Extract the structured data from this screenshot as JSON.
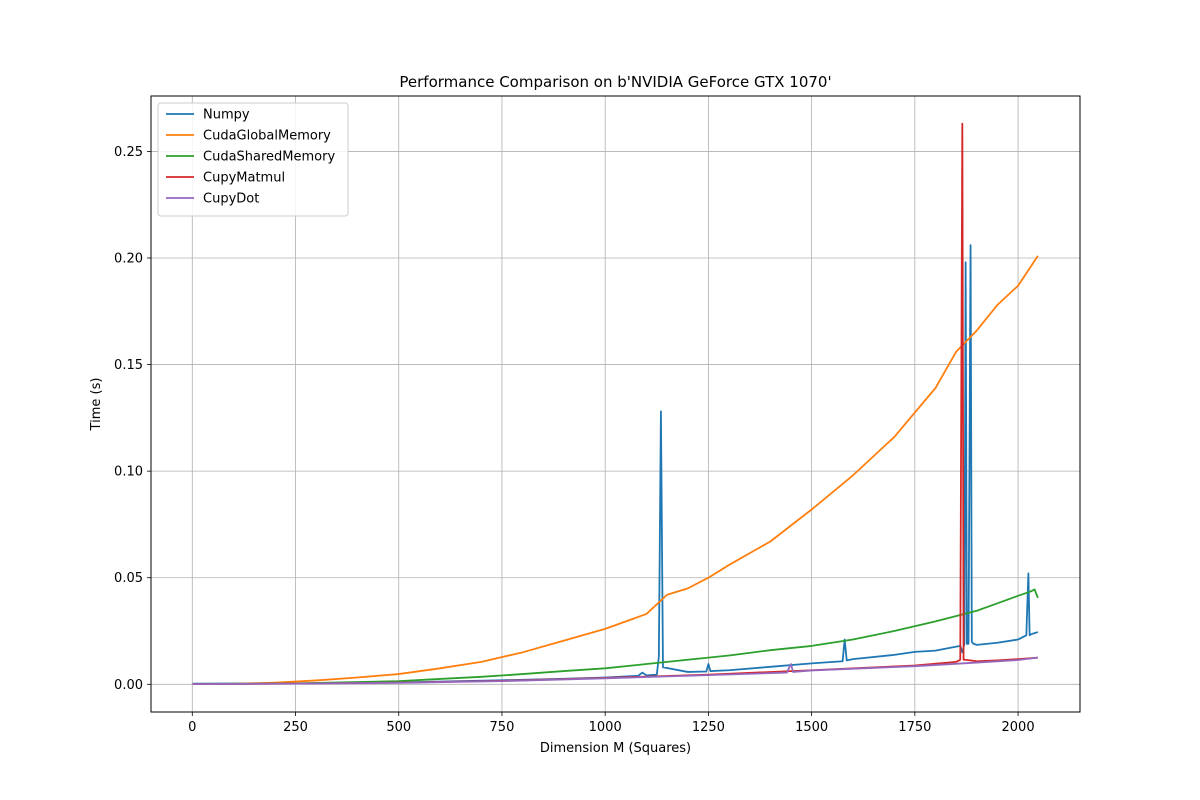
{
  "chart_data": {
    "type": "line",
    "title": "Performance Comparison on b'NVIDIA GeForce GTX 1070'",
    "xlabel": "Dimension M (Squares)",
    "ylabel": "Time (s)",
    "xlim": [
      -100,
      2150
    ],
    "ylim": [
      -0.013,
      0.276
    ],
    "xticks": [
      0,
      250,
      500,
      750,
      1000,
      1250,
      1500,
      1750,
      2000
    ],
    "xtick_labels": [
      "0",
      "250",
      "500",
      "750",
      "1000",
      "1250",
      "1500",
      "1750",
      "2000"
    ],
    "yticks": [
      0.0,
      0.05,
      0.1,
      0.15,
      0.2,
      0.25
    ],
    "ytick_labels": [
      "0.00",
      "0.05",
      "0.10",
      "0.15",
      "0.20",
      "0.25"
    ],
    "grid": true,
    "legend_position": "top-left",
    "series": [
      {
        "name": "Numpy",
        "color": "#1f77b4",
        "x": [
          1,
          250,
          500,
          750,
          900,
          1000,
          1080,
          1090,
          1100,
          1125,
          1130,
          1135,
          1140,
          1200,
          1245,
          1250,
          1255,
          1300,
          1400,
          1500,
          1575,
          1580,
          1585,
          1600,
          1700,
          1750,
          1800,
          1860,
          1865,
          1870,
          1873,
          1876,
          1880,
          1885,
          1888,
          1892,
          1900,
          1950,
          2000,
          2020,
          2025,
          2028,
          2032,
          2040,
          2048
        ],
        "y": [
          0.0003,
          0.0004,
          0.0009,
          0.0019,
          0.0026,
          0.0032,
          0.004,
          0.0055,
          0.0042,
          0.0045,
          0.013,
          0.128,
          0.008,
          0.0058,
          0.006,
          0.0095,
          0.0062,
          0.0066,
          0.0082,
          0.0098,
          0.0108,
          0.021,
          0.0112,
          0.0118,
          0.0138,
          0.0152,
          0.0158,
          0.018,
          0.015,
          0.019,
          0.198,
          0.019,
          0.019,
          0.206,
          0.02,
          0.019,
          0.0185,
          0.0195,
          0.021,
          0.023,
          0.052,
          0.023,
          0.0235,
          0.024,
          0.0245
        ]
      },
      {
        "name": "CudaGlobalMemory",
        "color": "#ff7f0e",
        "x": [
          1,
          100,
          200,
          300,
          400,
          500,
          600,
          700,
          800,
          900,
          1000,
          1100,
          1150,
          1200,
          1250,
          1300,
          1400,
          1500,
          1600,
          1700,
          1800,
          1850,
          1900,
          1950,
          2000,
          2048
        ],
        "y": [
          0.0001,
          0.0002,
          0.0008,
          0.0018,
          0.0032,
          0.0048,
          0.0075,
          0.0105,
          0.015,
          0.0205,
          0.026,
          0.033,
          0.042,
          0.045,
          0.05,
          0.056,
          0.067,
          0.082,
          0.098,
          0.116,
          0.139,
          0.156,
          0.166,
          0.178,
          0.187,
          0.201
        ]
      },
      {
        "name": "CudaSharedMemory",
        "color": "#2ca02c",
        "x": [
          1,
          250,
          500,
          600,
          700,
          800,
          900,
          1000,
          1100,
          1200,
          1300,
          1400,
          1500,
          1600,
          1700,
          1800,
          1900,
          1950,
          2000,
          2030,
          2040,
          2048
        ],
        "y": [
          0.0002,
          0.0004,
          0.0015,
          0.0025,
          0.0035,
          0.0048,
          0.0062,
          0.0075,
          0.0095,
          0.0115,
          0.0135,
          0.016,
          0.018,
          0.021,
          0.025,
          0.0295,
          0.0345,
          0.038,
          0.0415,
          0.0435,
          0.0445,
          0.0405
        ]
      },
      {
        "name": "CupyMatmul",
        "color": "#d62728",
        "x": [
          1,
          250,
          500,
          750,
          1000,
          1250,
          1500,
          1750,
          1850,
          1860,
          1865,
          1868,
          1872,
          1900,
          1950,
          2000,
          2048
        ],
        "y": [
          0.0001,
          0.0003,
          0.0008,
          0.0016,
          0.003,
          0.0045,
          0.0066,
          0.0088,
          0.0105,
          0.0115,
          0.263,
          0.0115,
          0.0115,
          0.0108,
          0.0112,
          0.0118,
          0.0125
        ]
      },
      {
        "name": "CupyDot",
        "color": "#9467bd",
        "x": [
          1,
          250,
          500,
          750,
          1000,
          1250,
          1440,
          1450,
          1455,
          1500,
          1750,
          1900,
          2000,
          2048
        ],
        "y": [
          0.0001,
          0.0003,
          0.0007,
          0.0015,
          0.0028,
          0.0043,
          0.0055,
          0.0095,
          0.0058,
          0.0065,
          0.0085,
          0.0102,
          0.0114,
          0.0125
        ]
      }
    ]
  }
}
